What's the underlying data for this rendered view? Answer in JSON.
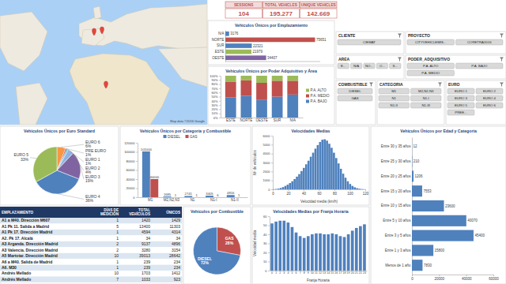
{
  "map": {
    "attribution": "Map data ©2016 Google"
  },
  "kpis": [
    {
      "label": "SESSIONS",
      "value": "104"
    },
    {
      "label": "TOTAL VEHICLES",
      "value": "195.277"
    },
    {
      "label": "UNIQUE VEHICLES",
      "value": "142.669"
    }
  ],
  "filters": [
    {
      "title": "CLIENTE",
      "items": [
        "CIEMAT"
      ]
    },
    {
      "title": "PROYECTO",
      "items": [
        "CITYVEHICLEMIS...",
        "CORETRA2016"
      ]
    },
    {
      "title": "AREA",
      "items": [
        "E...",
        "N/A",
        "NO...",
        "O...",
        "S..."
      ]
    },
    {
      "title": "PODER_ADQUISITIVO",
      "items": [
        "P.A. ALTO",
        "P.A. BAJO",
        "P.A. MEDIO"
      ]
    },
    {
      "title": "COMBUSTIBLE",
      "items": [
        "DIESEL",
        "GAS"
      ]
    },
    {
      "title": "CATEGORIA",
      "items": [
        "M1",
        "M2,N2,N3",
        "N1",
        "N1-I",
        "N1-II",
        "N1-III"
      ]
    },
    {
      "title": "EURO",
      "items": [
        "EURO 1",
        "EURO 2",
        "EURO 3",
        "EURO 4",
        "EURO 5",
        "EURO 6",
        "PREE..."
      ]
    }
  ],
  "table": {
    "columns": [
      "EMPLAZAMIENTO",
      "DÍAS DE MEDICIÓN",
      "TOTAL VEHÍCULOS",
      "ÚNICOS"
    ],
    "rows": [
      [
        "A1 a M40. Dirección M607",
        "1",
        "1420",
        "1429"
      ],
      [
        "A1 Pk 11. Salida a Madrid",
        "5",
        "13400",
        "11303"
      ],
      [
        "A1 Pk 17. Dirección Madrid",
        "1",
        "4594",
        "4314"
      ],
      [
        "A2. Pk 17. Alcalá",
        "1",
        "34",
        "34"
      ],
      [
        "A3 Arganda. Dirección Madrid",
        "2",
        "9137",
        "4896"
      ],
      [
        "A3 Valencia. Dirección Madrid",
        "2",
        "3280",
        "3154"
      ],
      [
        "A5 Martotar. Dirección Madrid",
        "10",
        "39013",
        "28642"
      ],
      [
        "A6 a M40. Salida de Madrid",
        "1",
        "239",
        "234"
      ],
      [
        "A6. M30",
        "1",
        "239",
        "234"
      ],
      [
        "Andrés Mellado",
        "10",
        "1703",
        "1412"
      ],
      [
        "Andrés Mellado",
        "7",
        "1033",
        "923"
      ]
    ]
  },
  "chart_data": [
    {
      "type": "bar",
      "title": "Vehículos Únicos por Emplazamiento",
      "orientation": "horizontal",
      "categories": [
        "N/A",
        "NORTE",
        "SUR",
        "ESTE",
        "OESTE"
      ],
      "values": [
        3176,
        75651,
        22321,
        21979,
        34407
      ],
      "colors": [
        "#4f81bd",
        "#c0504d",
        "#4f81bd",
        "#9bbb59",
        "#8064a2"
      ],
      "xlim": [
        0,
        80000
      ],
      "tick_labels": "y",
      "data_labels": true
    },
    {
      "type": "bar",
      "title": "Vehículos Únicos por Poder Adquisitivo y Área",
      "stacked": true,
      "categories": [
        "ESTE",
        "NORTE",
        "OESTE",
        "SUR",
        "N/A"
      ],
      "series": [
        {
          "name": "P.A. BAJO",
          "color": "#4f81bd",
          "values": [
            48,
            52,
            42,
            50,
            55
          ]
        },
        {
          "name": "P.A. MEDIO",
          "color": "#c0504d",
          "values": [
            38,
            37,
            41,
            38,
            33
          ]
        },
        {
          "name": "P.A. ALTO",
          "color": "#9bbb59",
          "values": [
            14,
            11,
            17,
            12,
            12
          ]
        }
      ],
      "ylim": [
        0,
        100
      ],
      "yticks": [
        {
          "value": 0,
          "label": "0%"
        },
        {
          "value": 10,
          "label": "10%"
        },
        {
          "value": 20,
          "label": "20%"
        },
        {
          "value": 30,
          "label": "30%"
        },
        {
          "value": 40,
          "label": "40%"
        },
        {
          "value": 50,
          "label": "50%"
        },
        {
          "value": 60,
          "label": "60%"
        },
        {
          "value": 70,
          "label": "70%"
        },
        {
          "value": 80,
          "label": "80%"
        },
        {
          "value": 90,
          "label": "90%"
        },
        {
          "value": 100,
          "label": "100%"
        }
      ],
      "legend": "right"
    },
    {
      "type": "pie",
      "title": "Vehículos Únicos por Euro Standard",
      "categories": [
        "EURO 6",
        "PRE EURO",
        "EURO 1",
        "EURO 2",
        "EURO 3",
        "EURO 4",
        "EURO 5"
      ],
      "values": [
        6,
        1,
        1,
        4,
        19,
        36,
        33
      ],
      "value_labels": [
        "6%",
        "1%",
        "1%",
        "4%",
        "19%",
        "36%",
        "33%"
      ],
      "colors": [
        "#f79646",
        "#c0504d",
        "#4bacc6",
        "#8fb4e3",
        "#8064a2",
        "#4f81bd",
        "#9bbb59"
      ],
      "data_labels": true
    },
    {
      "type": "bar",
      "title": "Vehículos Únicos por Categoría y Combustible",
      "categories": [
        "M1",
        "M2,N2,N3",
        "N1",
        "N1-I",
        "N1-II"
      ],
      "series": [
        {
          "name": "DIESEL",
          "color": "#4f81bd",
          "values": [
            101000,
            1685,
            2741,
            3405,
            4816
          ]
        },
        {
          "name": "GAS",
          "color": "#c0504d",
          "values": [
            40000,
            1,
            1,
            6,
            1
          ]
        }
      ],
      "ylim": [
        0,
        120000
      ],
      "yticks": [
        0,
        20000,
        40000,
        60000,
        80000,
        100000,
        120000
      ],
      "legend": "top",
      "data_labels": true
    },
    {
      "type": "histogram",
      "title": "Velocidades Medias",
      "color": "#4f81bd",
      "x_label": "Velocidad media (km/h)",
      "y_label": "Nº de vehículos",
      "bins": [
        0,
        3,
        6,
        9,
        12,
        15,
        18,
        21,
        24,
        27,
        30,
        33,
        36,
        39,
        42,
        45,
        48,
        51,
        54,
        57,
        60,
        63,
        66,
        69,
        72,
        75,
        78,
        81,
        84,
        87,
        90,
        93,
        96,
        99,
        102,
        105,
        108,
        111,
        114,
        117,
        120
      ],
      "values": [
        20,
        40,
        80,
        150,
        250,
        380,
        520,
        700,
        900,
        1150,
        1420,
        1700,
        2050,
        2400,
        2800,
        3200,
        3650,
        4100,
        4550,
        4950,
        5300,
        5550,
        5600,
        5450,
        5100,
        4650,
        4100,
        3500,
        2900,
        2300,
        1750,
        1300,
        900,
        600,
        380,
        230,
        130,
        70,
        35,
        15
      ],
      "xlim": [
        0,
        120
      ],
      "xticks": [
        0,
        20,
        40,
        60,
        80,
        100,
        120
      ],
      "ylim": [
        0,
        6000
      ],
      "yticks": [
        0,
        1000,
        2000,
        3000,
        4000,
        5000,
        6000
      ]
    },
    {
      "type": "bar",
      "title": "Vehículos Únicos por Edad y Categoría",
      "orientation": "horizontal",
      "categories": [
        "Entre 30 y 35 años",
        "Entre 25 y 30 años",
        "Entre 20 y 25 años",
        "Entre 15 y 20 años",
        "Entre 10 y 15 años",
        "Entre 5 y 10 años",
        "Entre 3 y 5 años",
        "Entre 1 y 3 años",
        "Menos de 1 año"
      ],
      "values": [
        12,
        210,
        1206,
        7553,
        23600,
        40070,
        45400,
        15800,
        7830
      ],
      "color": "#4f81bd",
      "xlim": [
        0,
        60000
      ],
      "xticks": [
        0,
        20000,
        40000,
        60000
      ],
      "data_labels": true
    },
    {
      "type": "pie",
      "title": "Vehículos por Combustible",
      "categories": [
        "GAS",
        "DIESEL"
      ],
      "values": [
        28,
        72
      ],
      "value_labels": [
        "28%",
        "72%"
      ],
      "colors": [
        "#c0504d",
        "#4f81bd"
      ],
      "data_labels": true
    },
    {
      "type": "bar",
      "title": "Velocidades Medias por Franja Horaria",
      "x_label": "Franja Horaria",
      "y_label": "Velocidad media",
      "categories": [
        "0",
        "1",
        "2",
        "3",
        "4",
        "5",
        "6",
        "7",
        "8",
        "9",
        "10",
        "11",
        "12",
        "13",
        "14",
        "15",
        "16",
        "17",
        "18",
        "19",
        "20",
        "21",
        "22",
        "23"
      ],
      "values": [
        52,
        54,
        55,
        55,
        53,
        48,
        42,
        38,
        36,
        38,
        40,
        41,
        41,
        40,
        40,
        41,
        40,
        38,
        37,
        40,
        44,
        47,
        49,
        51
      ],
      "color": "#4f81bd",
      "ylim": [
        0,
        60
      ],
      "yticks": [
        0,
        10,
        20,
        30,
        40,
        50,
        60
      ]
    }
  ]
}
